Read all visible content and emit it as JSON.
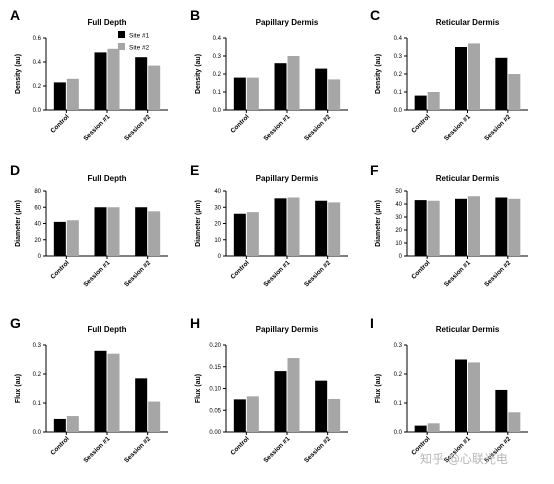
{
  "legend": {
    "entries": [
      "Site #1",
      "Site #2"
    ]
  },
  "watermark": "知乎 @心联光电",
  "colors": {
    "site1": "#000000",
    "site2": "#a6a6a6"
  },
  "chart_data": [
    {
      "panel": "A",
      "type": "bar",
      "title": "Full Depth",
      "ylabel": "Density (au)",
      "categories": [
        "Control",
        "Session #1",
        "Session #2"
      ],
      "ylim": [
        0,
        0.6
      ],
      "yticks": [
        "0.0",
        "0.2",
        "0.4",
        "0.6"
      ],
      "series": [
        {
          "name": "Site #1",
          "values": [
            0.23,
            0.48,
            0.44
          ]
        },
        {
          "name": "Site #2",
          "values": [
            0.26,
            0.51,
            0.37
          ]
        }
      ]
    },
    {
      "panel": "B",
      "type": "bar",
      "title": "Papillary Dermis",
      "ylabel": "Density (au)",
      "categories": [
        "Control",
        "Session #1",
        "Session #2"
      ],
      "ylim": [
        0,
        0.4
      ],
      "yticks": [
        "0.0",
        "0.1",
        "0.2",
        "0.3",
        "0.4"
      ],
      "series": [
        {
          "name": "Site #1",
          "values": [
            0.18,
            0.26,
            0.23
          ]
        },
        {
          "name": "Site #2",
          "values": [
            0.18,
            0.3,
            0.17
          ]
        }
      ]
    },
    {
      "panel": "C",
      "type": "bar",
      "title": "Reticular Dermis",
      "ylabel": "Density (au)",
      "categories": [
        "Control",
        "Session #1",
        "Session #2"
      ],
      "ylim": [
        0,
        0.4
      ],
      "yticks": [
        "0.0",
        "0.1",
        "0.2",
        "0.3",
        "0.4"
      ],
      "series": [
        {
          "name": "Site #1",
          "values": [
            0.08,
            0.35,
            0.29
          ]
        },
        {
          "name": "Site #2",
          "values": [
            0.1,
            0.37,
            0.2
          ]
        }
      ]
    },
    {
      "panel": "D",
      "type": "bar",
      "title": "Full Depth",
      "ylabel": "Diameter (µm)",
      "categories": [
        "Control",
        "Session #1",
        "Session #2"
      ],
      "ylim": [
        0,
        80
      ],
      "yticks": [
        "0",
        "20",
        "40",
        "60",
        "80"
      ],
      "series": [
        {
          "name": "Site #1",
          "values": [
            42,
            60,
            60
          ]
        },
        {
          "name": "Site #2",
          "values": [
            44,
            60,
            55
          ]
        }
      ]
    },
    {
      "panel": "E",
      "type": "bar",
      "title": "Papillary Dermis",
      "ylabel": "Diameter (µm)",
      "categories": [
        "Control",
        "Session #1",
        "Session #2"
      ],
      "ylim": [
        0,
        40
      ],
      "yticks": [
        "0",
        "10",
        "20",
        "30",
        "40"
      ],
      "series": [
        {
          "name": "Site #1",
          "values": [
            26,
            35.5,
            34
          ]
        },
        {
          "name": "Site #2",
          "values": [
            27,
            36,
            33
          ]
        }
      ]
    },
    {
      "panel": "F",
      "type": "bar",
      "title": "Reticular Dermis",
      "ylabel": "Diameter (µm)",
      "categories": [
        "Control",
        "Session #1",
        "Session #2"
      ],
      "ylim": [
        0,
        50
      ],
      "yticks": [
        "0",
        "10",
        "20",
        "30",
        "40",
        "50"
      ],
      "series": [
        {
          "name": "Site #1",
          "values": [
            43,
            44,
            45
          ]
        },
        {
          "name": "Site #2",
          "values": [
            42.5,
            46,
            44
          ]
        }
      ]
    },
    {
      "panel": "G",
      "type": "bar",
      "title": "Full Depth",
      "ylabel": "Flux (au)",
      "categories": [
        "Control",
        "Session #1",
        "Session #2"
      ],
      "ylim": [
        0,
        0.3
      ],
      "yticks": [
        "0.0",
        "0.1",
        "0.2",
        "0.3"
      ],
      "series": [
        {
          "name": "Site #1",
          "values": [
            0.045,
            0.28,
            0.185
          ]
        },
        {
          "name": "Site #2",
          "values": [
            0.055,
            0.27,
            0.105
          ]
        }
      ]
    },
    {
      "panel": "H",
      "type": "bar",
      "title": "Papillary Dermis",
      "ylabel": "Flux (au)",
      "categories": [
        "Control",
        "Session #1",
        "Session #2"
      ],
      "ylim": [
        0,
        0.2
      ],
      "yticks": [
        "0.00",
        "0.05",
        "0.10",
        "0.15",
        "0.20"
      ],
      "series": [
        {
          "name": "Site #1",
          "values": [
            0.075,
            0.14,
            0.118
          ]
        },
        {
          "name": "Site #2",
          "values": [
            0.082,
            0.17,
            0.076
          ]
        }
      ]
    },
    {
      "panel": "I",
      "type": "bar",
      "title": "Reticular Dermis",
      "ylabel": "Flux (au)",
      "categories": [
        "Control",
        "Session #1",
        "Session #2"
      ],
      "ylim": [
        0,
        0.3
      ],
      "yticks": [
        "0.0",
        "0.1",
        "0.2",
        "0.3"
      ],
      "series": [
        {
          "name": "Site #1",
          "values": [
            0.022,
            0.25,
            0.145
          ]
        },
        {
          "name": "Site #2",
          "values": [
            0.03,
            0.24,
            0.068
          ]
        }
      ]
    }
  ]
}
